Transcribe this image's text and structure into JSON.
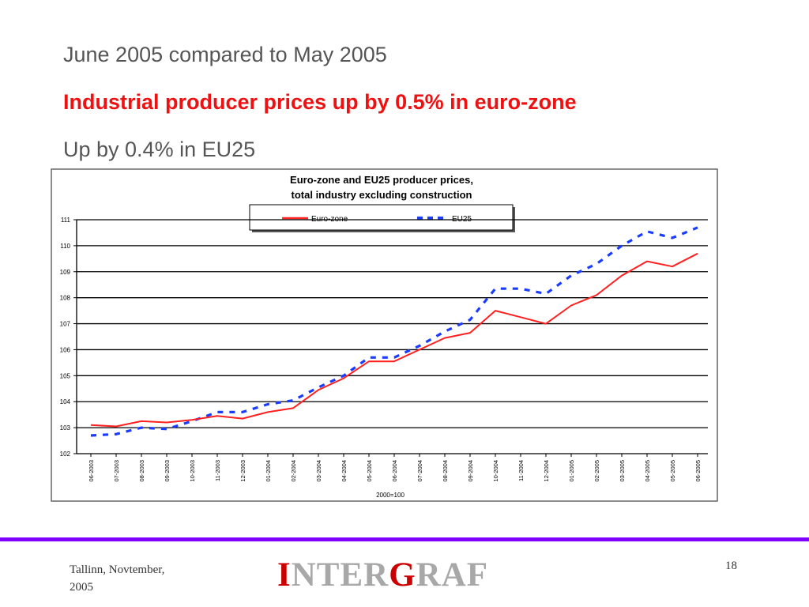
{
  "slide": {
    "heading": "June 2005 compared to May 2005",
    "subheading": "Industrial producer prices up by 0.5% in euro-zone",
    "subheading2": "Up by 0.4% in EU25"
  },
  "colors": {
    "euro_zone": "#ff2020",
    "eu25": "#1a3cff",
    "accent_line": "#8000ff",
    "headline_red": "#ee1111"
  },
  "footer": {
    "location": "Tallinn, Novtember,",
    "year": "2005",
    "logo_parts": [
      "I",
      "NTER",
      "G",
      "RAF"
    ],
    "page_number": "18"
  },
  "chart_data": {
    "type": "line",
    "title": [
      "Euro-zone and EU25 producer prices,",
      "total industry excluding construction"
    ],
    "xlabel": "2000=100",
    "ylabel": "",
    "ylim": [
      102,
      111
    ],
    "yticks": [
      102,
      103,
      104,
      105,
      106,
      107,
      108,
      109,
      110,
      111
    ],
    "grid": true,
    "legend_position": "top",
    "categories": [
      "06-2003",
      "07-2003",
      "08-2003",
      "09-2003",
      "10-2003",
      "11-2003",
      "12-2003",
      "01-2004",
      "02-2004",
      "03-2004",
      "04-2004",
      "05-2004",
      "06-2004",
      "07-2004",
      "08-2004",
      "09-2004",
      "10-2004",
      "11-2004",
      "12-2004",
      "01-2005",
      "02-2005",
      "03-2005",
      "04-2005",
      "05-2005",
      "06-2005"
    ],
    "series": [
      {
        "name": "Euro-zone",
        "style": "solid",
        "values": [
          103.1,
          103.05,
          103.25,
          103.2,
          103.3,
          103.45,
          103.35,
          103.6,
          103.75,
          104.45,
          104.9,
          105.55,
          105.55,
          106.0,
          106.45,
          106.65,
          107.5,
          107.25,
          107.0,
          107.7,
          108.1,
          108.85,
          109.4,
          109.2,
          109.7
        ]
      },
      {
        "name": "EU25",
        "style": "dashed",
        "values": [
          102.7,
          102.75,
          103.0,
          102.95,
          103.25,
          103.6,
          103.6,
          103.9,
          104.05,
          104.55,
          105.0,
          105.7,
          105.7,
          106.15,
          106.7,
          107.15,
          108.35,
          108.35,
          108.15,
          108.85,
          109.3,
          110.0,
          110.55,
          110.3,
          110.7
        ]
      }
    ]
  }
}
